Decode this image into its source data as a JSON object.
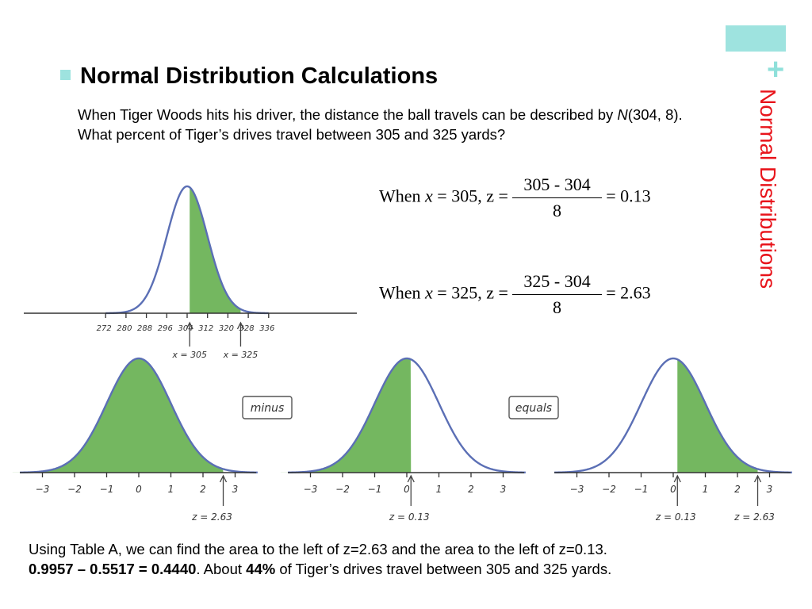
{
  "slide": {
    "side_title": "Normal Distributions",
    "heading": "Normal Distribution Calculations",
    "question": {
      "part1": "When Tiger Woods hits his driver, the distance the ball travels can be described by ",
      "dist_letter": "N",
      "part2": "(304, 8).  What percent of Tiger’s drives travel between 305 and 325 yards?"
    },
    "formulas": [
      {
        "lead": "When ",
        "var": "x",
        "rest": " = 305, z = ",
        "numerator": "305 - 304",
        "denominator": "8",
        "result": "= 0.13"
      },
      {
        "lead": "When ",
        "var": "x",
        "rest": " = 325, z = ",
        "numerator": "325 - 304",
        "denominator": "8",
        "result": "= 2.63"
      }
    ],
    "conclusion": {
      "line1": "Using Table A, we can find the area to the left of z=2.63 and the area to the left of z=0.13.",
      "calc": "0.9957 – 0.5517 = 0.4440",
      "middle": ".  About ",
      "percent": "44%",
      "end": " of Tiger’s drives travel between 305 and 325  yards."
    }
  },
  "main_curve": {
    "ticks": [
      "272",
      "280",
      "288",
      "296",
      "304",
      "312",
      "320",
      "328",
      "336"
    ],
    "markers": [
      "x = 305",
      "x = 325"
    ]
  },
  "small_curves": {
    "ticks": [
      "−3",
      "−2",
      "−1",
      "0",
      "1",
      "2",
      "3"
    ],
    "labels": [
      "minus",
      "equals"
    ],
    "marker_left": "z = 2.63",
    "marker_mid": "z = 0.13",
    "marker_right_a": "z = 0.13",
    "marker_right_b": "z = 2.63"
  },
  "colors": {
    "curve": "#5b6fb5",
    "fill": "#74b760",
    "accent": "#9ee3df",
    "side_title": "#e8141b"
  }
}
